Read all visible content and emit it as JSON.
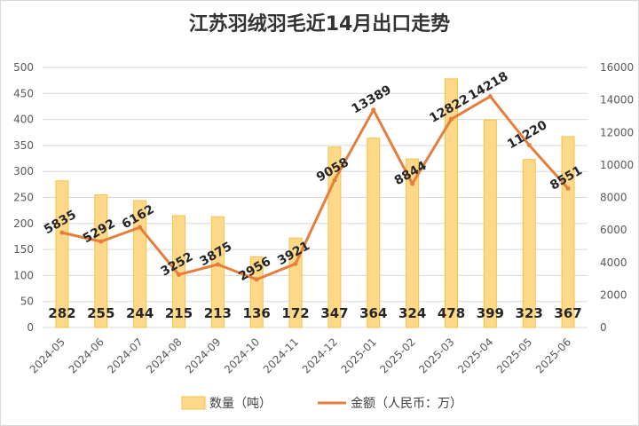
{
  "chart_data": {
    "type": "bar",
    "title": "江苏羽绒羽毛近14月出口走势",
    "categories": [
      "2024-05",
      "2024-06",
      "2024-07",
      "2024-08",
      "2024-09",
      "2024-10",
      "2024-11",
      "2024-12",
      "2025-01",
      "2025-02",
      "2025-03",
      "2025-04",
      "2025-05",
      "2025-06"
    ],
    "series": [
      {
        "name": "数量（吨）",
        "type": "bar",
        "axis": "left",
        "values": [
          282,
          255,
          244,
          215,
          213,
          136,
          172,
          347,
          364,
          324,
          478,
          399,
          323,
          367
        ]
      },
      {
        "name": "金额（人民币：万）",
        "type": "line",
        "axis": "right",
        "values": [
          5835,
          5292,
          6162,
          3252,
          3875,
          2956,
          3921,
          9058,
          13389,
          8844,
          12822,
          14218,
          11220,
          8551
        ]
      }
    ],
    "y_left": {
      "range": [
        0,
        500
      ],
      "ticks": [
        "0",
        "50",
        "100",
        "150",
        "200",
        "250",
        "300",
        "350",
        "400",
        "450",
        "500"
      ]
    },
    "y_right": {
      "range": [
        0,
        16000
      ],
      "ticks": [
        "0",
        "2000",
        "4000",
        "6000",
        "8000",
        "10000",
        "12000",
        "14000",
        "16000"
      ]
    },
    "grid": true,
    "legend": "bottom",
    "colors": {
      "bar": "#FFD98A",
      "bar_stroke": "#F5C241",
      "line": "#E67E3B",
      "grid": "#d9d9d9"
    }
  }
}
